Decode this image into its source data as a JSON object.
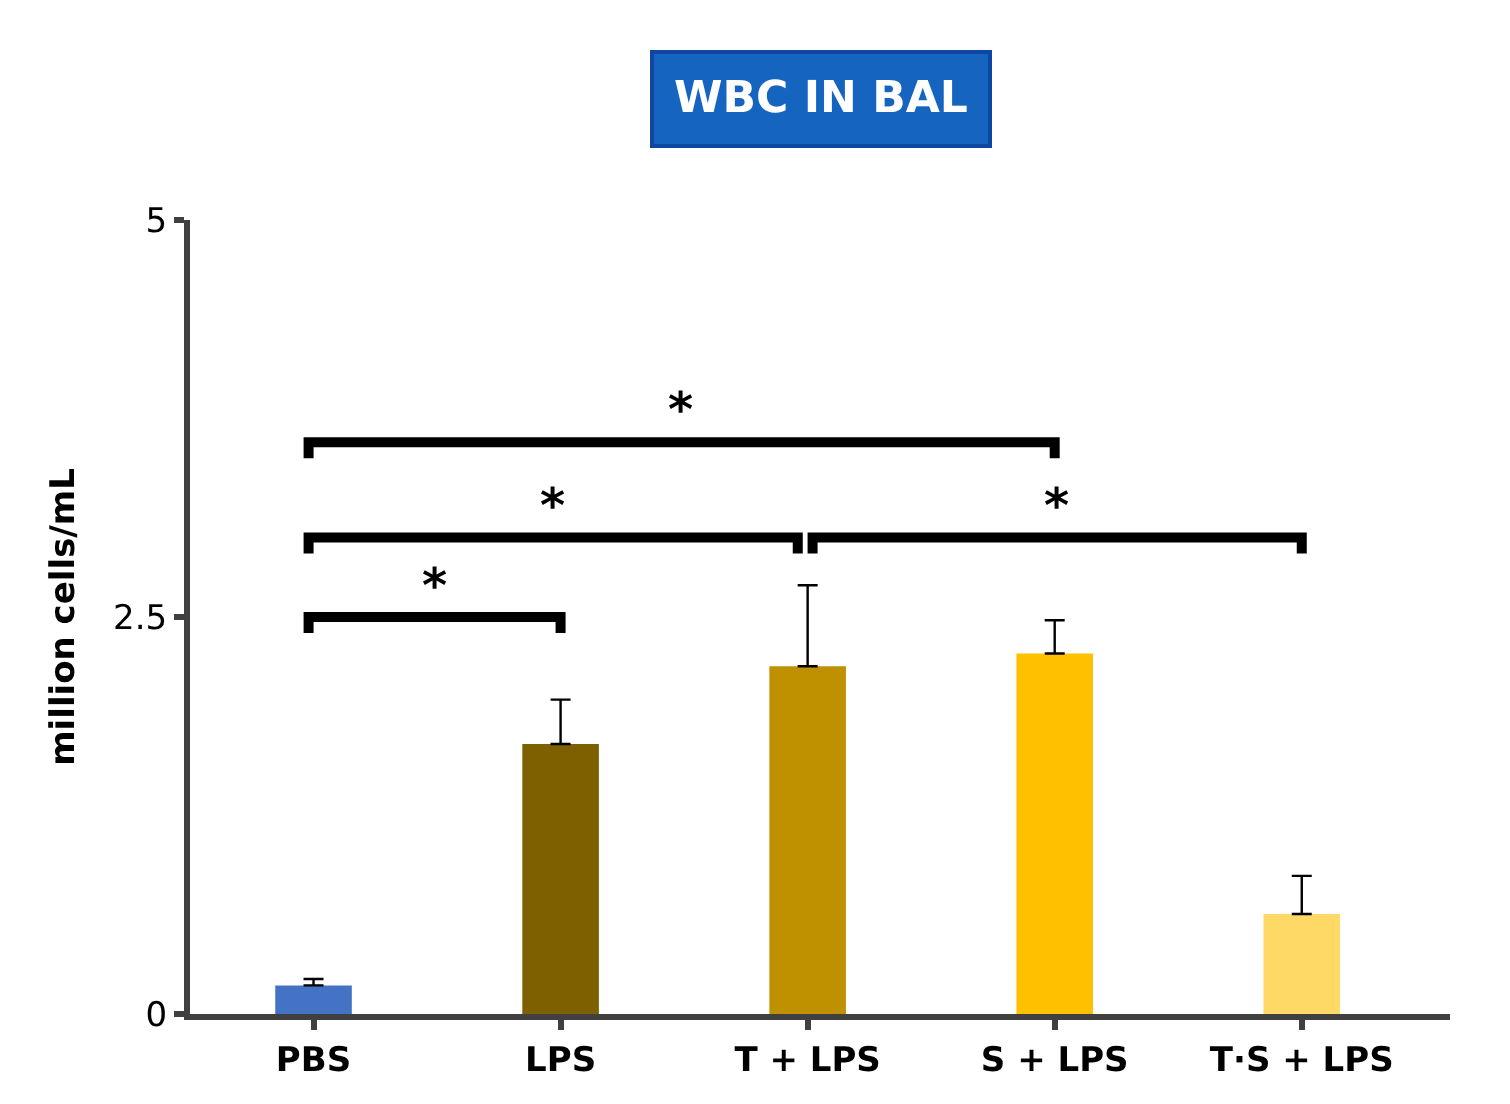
{
  "chart_data": {
    "type": "bar",
    "title": "WBC IN BAL",
    "ylabel": "million cells/mL",
    "categories": [
      "PBS",
      "LPS",
      "T + LPS",
      "S + LPS",
      "T·S + LPS"
    ],
    "values": [
      0.18,
      1.7,
      2.19,
      2.27,
      0.63
    ],
    "colors": [
      "#4472c4",
      "#7f6000",
      "#bf9000",
      "#ffc000",
      "#ffd966"
    ],
    "errors": [
      [
        0.18,
        0.22
      ],
      [
        1.7,
        1.98
      ],
      [
        2.19,
        2.7
      ],
      [
        2.27,
        2.48
      ],
      [
        0.63,
        0.87
      ]
    ],
    "ylim": [
      0,
      5
    ],
    "yticks": [
      0,
      2.5,
      5
    ],
    "annotations": [
      "*",
      "*",
      "*",
      "*"
    ]
  }
}
